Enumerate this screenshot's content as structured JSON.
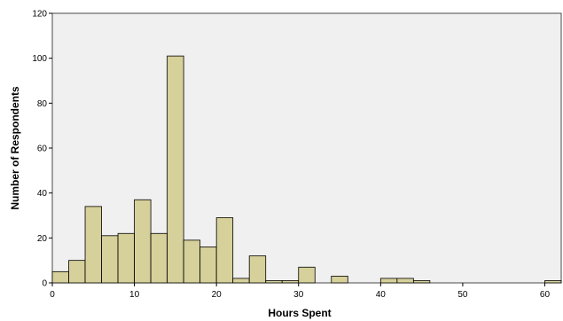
{
  "chart_data": {
    "type": "bar",
    "title": "",
    "xlabel": "Hours Spent",
    "ylabel": "Number of Respondents",
    "xlim": [
      0,
      62
    ],
    "ylim": [
      0,
      120
    ],
    "xticks": [
      0,
      10,
      20,
      30,
      40,
      50,
      60
    ],
    "yticks": [
      0,
      20,
      40,
      60,
      80,
      100,
      120
    ],
    "bin_width": 2,
    "bins": [
      {
        "x": 0,
        "count": 5
      },
      {
        "x": 2,
        "count": 10
      },
      {
        "x": 4,
        "count": 34
      },
      {
        "x": 6,
        "count": 21
      },
      {
        "x": 8,
        "count": 22
      },
      {
        "x": 10,
        "count": 37
      },
      {
        "x": 12,
        "count": 22
      },
      {
        "x": 14,
        "count": 101
      },
      {
        "x": 16,
        "count": 19
      },
      {
        "x": 18,
        "count": 16
      },
      {
        "x": 20,
        "count": 29
      },
      {
        "x": 22,
        "count": 2
      },
      {
        "x": 24,
        "count": 12
      },
      {
        "x": 26,
        "count": 1
      },
      {
        "x": 28,
        "count": 1
      },
      {
        "x": 30,
        "count": 7
      },
      {
        "x": 34,
        "count": 3
      },
      {
        "x": 40,
        "count": 2
      },
      {
        "x": 42,
        "count": 2
      },
      {
        "x": 44,
        "count": 1
      },
      {
        "x": 60,
        "count": 1
      }
    ],
    "grid": false,
    "colors": {
      "bar_fill": "#d6d09a",
      "bar_stroke": "#000000",
      "plot_background": "#f0f0f0"
    }
  }
}
